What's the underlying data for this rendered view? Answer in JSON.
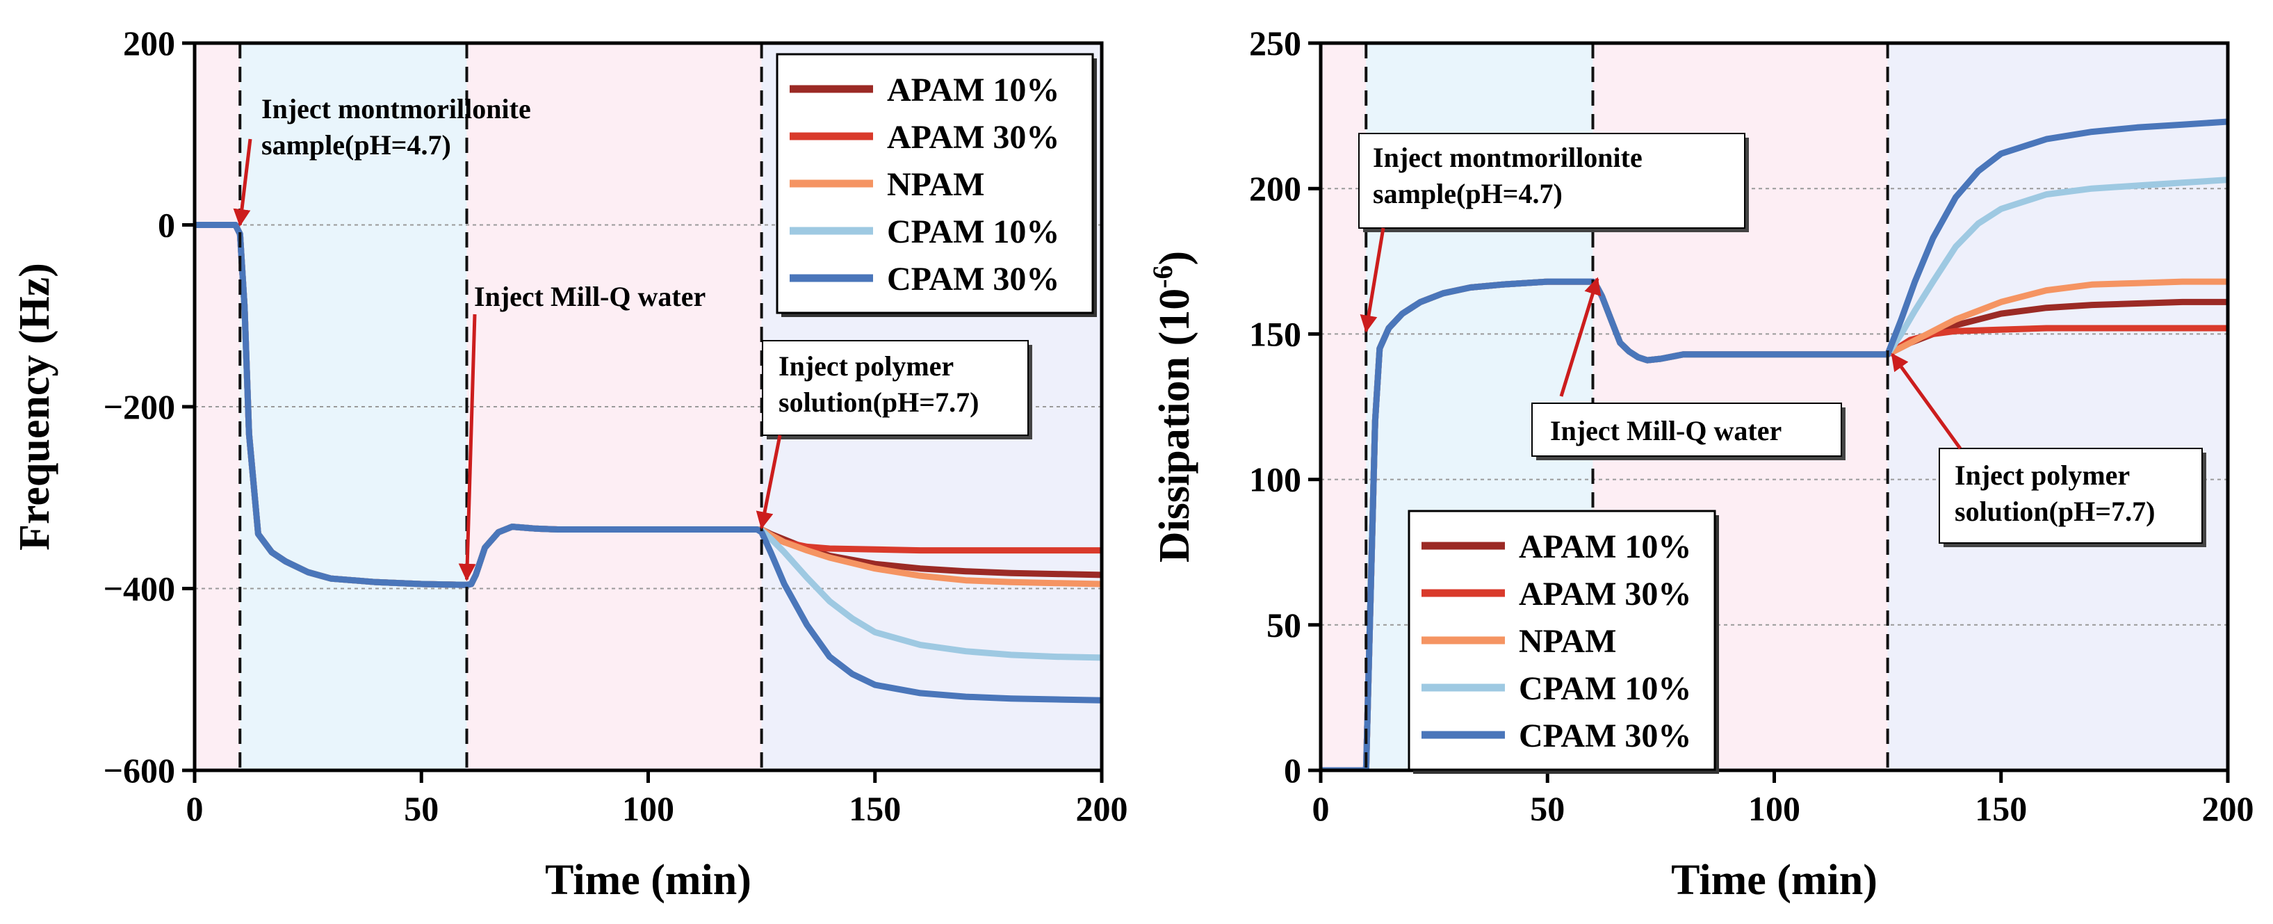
{
  "chart_data": [
    {
      "type": "line",
      "xlabel": "Time (min)",
      "ylabel": "Frequency (Hz)",
      "xlim": [
        0,
        200
      ],
      "ylim": [
        -600,
        200
      ],
      "xticks": [
        0,
        50,
        100,
        150,
        200
      ],
      "yticks": [
        -600,
        -400,
        -200,
        0,
        200
      ],
      "ytick_labels": [
        "−600",
        "−400",
        "−200",
        "0",
        "200"
      ],
      "grid_y": [
        -400,
        -200,
        0
      ],
      "phases": [
        {
          "from": 0,
          "to": 10,
          "color": "#fdeef4"
        },
        {
          "from": 10,
          "to": 60,
          "color": "#e9f5fc"
        },
        {
          "from": 60,
          "to": 125,
          "color": "#fdeef4"
        },
        {
          "from": 125,
          "to": 200,
          "color": "#eef0fb"
        }
      ],
      "events": [
        10,
        60,
        125
      ],
      "legend_position": "top-right",
      "series": [
        {
          "name": "APAM 10%",
          "color": "#9b2a25",
          "x": [
            0,
            9,
            10,
            11,
            12,
            14,
            17,
            20,
            25,
            30,
            40,
            50,
            60,
            61,
            62,
            64,
            67,
            70,
            75,
            80,
            90,
            100,
            110,
            124,
            125,
            127,
            130,
            135,
            140,
            150,
            160,
            170,
            180,
            190,
            200
          ],
          "y": [
            0,
            0,
            -10,
            -90,
            -230,
            -340,
            -360,
            -370,
            -382,
            -389,
            -393,
            -395,
            -396,
            -395,
            -385,
            -355,
            -338,
            -332,
            -334,
            -335,
            -335,
            -335,
            -335,
            -335,
            -335,
            -340,
            -346,
            -356,
            -364,
            -373,
            -378,
            -381,
            -383,
            -384,
            -385
          ]
        },
        {
          "name": "APAM 30%",
          "color": "#d93a2b",
          "x": [
            0,
            9,
            10,
            11,
            12,
            14,
            17,
            20,
            25,
            30,
            40,
            50,
            60,
            61,
            62,
            64,
            67,
            70,
            75,
            80,
            90,
            100,
            110,
            124,
            125,
            127,
            130,
            135,
            140,
            150,
            160,
            170,
            180,
            190,
            200
          ],
          "y": [
            0,
            0,
            -10,
            -90,
            -230,
            -340,
            -360,
            -370,
            -382,
            -389,
            -393,
            -395,
            -396,
            -395,
            -385,
            -355,
            -338,
            -332,
            -334,
            -335,
            -335,
            -335,
            -335,
            -335,
            -335,
            -342,
            -349,
            -354,
            -356,
            -357,
            -358,
            -358,
            -358,
            -358,
            -358
          ]
        },
        {
          "name": "NPAM",
          "color": "#f59462",
          "x": [
            0,
            9,
            10,
            11,
            12,
            14,
            17,
            20,
            25,
            30,
            40,
            50,
            60,
            61,
            62,
            64,
            67,
            70,
            75,
            80,
            90,
            100,
            110,
            124,
            125,
            127,
            130,
            135,
            140,
            150,
            160,
            170,
            180,
            190,
            200
          ],
          "y": [
            0,
            0,
            -10,
            -90,
            -230,
            -340,
            -360,
            -370,
            -382,
            -389,
            -393,
            -395,
            -396,
            -395,
            -385,
            -355,
            -338,
            -332,
            -334,
            -335,
            -335,
            -335,
            -335,
            -335,
            -335,
            -341,
            -349,
            -358,
            -366,
            -378,
            -386,
            -391,
            -393,
            -394,
            -395
          ]
        },
        {
          "name": "CPAM 10%",
          "color": "#9ec9e2",
          "x": [
            0,
            9,
            10,
            11,
            12,
            14,
            17,
            20,
            25,
            30,
            40,
            50,
            60,
            61,
            62,
            64,
            67,
            70,
            75,
            80,
            90,
            100,
            110,
            124,
            125,
            127,
            130,
            135,
            140,
            145,
            150,
            160,
            170,
            180,
            190,
            200
          ],
          "y": [
            0,
            0,
            -10,
            -90,
            -230,
            -340,
            -360,
            -370,
            -382,
            -389,
            -393,
            -395,
            -396,
            -395,
            -385,
            -355,
            -338,
            -332,
            -334,
            -335,
            -335,
            -335,
            -335,
            -335,
            -336,
            -345,
            -360,
            -388,
            -414,
            -433,
            -448,
            -462,
            -469,
            -473,
            -475,
            -476
          ]
        },
        {
          "name": "CPAM 30%",
          "color": "#4a76ba",
          "x": [
            0,
            9,
            10,
            11,
            12,
            14,
            17,
            20,
            25,
            30,
            40,
            50,
            60,
            61,
            62,
            64,
            67,
            70,
            75,
            80,
            90,
            100,
            110,
            124,
            125,
            127,
            130,
            135,
            140,
            145,
            150,
            160,
            170,
            180,
            190,
            200
          ],
          "y": [
            0,
            0,
            -10,
            -90,
            -230,
            -340,
            -360,
            -370,
            -382,
            -389,
            -393,
            -395,
            -396,
            -395,
            -385,
            -355,
            -338,
            -332,
            -334,
            -335,
            -335,
            -335,
            -335,
            -335,
            -338,
            -360,
            -395,
            -440,
            -475,
            -494,
            -506,
            -515,
            -519,
            -521,
            -522,
            -523
          ]
        }
      ],
      "annotations": [
        {
          "lines": [
            "Inject montmorillonite",
            " sample(pH=4.7)"
          ],
          "target": [
            10,
            0
          ],
          "box": "none"
        },
        {
          "lines": [
            "Inject Mill-Q water"
          ],
          "target": [
            60,
            -390
          ],
          "box": "none"
        },
        {
          "lines": [
            "Inject polymer",
            "solution(pH=7.7)"
          ],
          "target": [
            125,
            -333
          ],
          "box": "framed"
        }
      ]
    },
    {
      "type": "line",
      "xlabel": "Time (min)",
      "ylabel": "Dissipation (10",
      "ylabel_superscript": "-6",
      "ylabel_suffix": ")",
      "xlim": [
        0,
        200
      ],
      "ylim": [
        0,
        250
      ],
      "xticks": [
        0,
        50,
        100,
        150,
        200
      ],
      "yticks": [
        0,
        50,
        100,
        150,
        200,
        250
      ],
      "ytick_labels": [
        "0",
        "50",
        "100",
        "150",
        "200",
        "250"
      ],
      "grid_y": [
        50,
        100,
        150,
        200
      ],
      "phases": [
        {
          "from": 0,
          "to": 10,
          "color": "#fdeef4"
        },
        {
          "from": 10,
          "to": 60,
          "color": "#e9f5fc"
        },
        {
          "from": 60,
          "to": 125,
          "color": "#fdeef4"
        },
        {
          "from": 125,
          "to": 200,
          "color": "#eef0fb"
        }
      ],
      "events": [
        10,
        60,
        125
      ],
      "legend_position": "bottom-left",
      "series": [
        {
          "name": "APAM 10%",
          "color": "#9b2a25",
          "x": [
            0,
            10,
            11,
            12,
            13,
            15,
            18,
            22,
            27,
            33,
            40,
            50,
            58,
            60,
            61,
            62,
            64,
            66,
            68,
            70,
            72,
            75,
            80,
            90,
            100,
            110,
            125,
            130,
            135,
            140,
            150,
            160,
            170,
            180,
            190,
            200
          ],
          "y": [
            0,
            0,
            60,
            120,
            145,
            152,
            157,
            161,
            164,
            166,
            167,
            168,
            168,
            168,
            166,
            163,
            155,
            147,
            144,
            142,
            141,
            141.5,
            143,
            143,
            143,
            143,
            143,
            147,
            150,
            153,
            157,
            159,
            160,
            160.5,
            161,
            161
          ]
        },
        {
          "name": "APAM 30%",
          "color": "#d93a2b",
          "x": [
            0,
            10,
            11,
            12,
            13,
            15,
            18,
            22,
            27,
            33,
            40,
            50,
            58,
            60,
            61,
            62,
            64,
            66,
            68,
            70,
            72,
            75,
            80,
            90,
            100,
            110,
            125,
            130,
            135,
            140,
            150,
            160,
            170,
            180,
            190,
            200
          ],
          "y": [
            0,
            0,
            60,
            120,
            145,
            152,
            157,
            161,
            164,
            166,
            167,
            168,
            168,
            168,
            166,
            163,
            155,
            147,
            144,
            142,
            141,
            141.5,
            143,
            143,
            143,
            143,
            143,
            148,
            150,
            151,
            151.5,
            152,
            152,
            152,
            152,
            152
          ]
        },
        {
          "name": "NPAM",
          "color": "#f59462",
          "x": [
            0,
            10,
            11,
            12,
            13,
            15,
            18,
            22,
            27,
            33,
            40,
            50,
            58,
            60,
            61,
            62,
            64,
            66,
            68,
            70,
            72,
            75,
            80,
            90,
            100,
            110,
            125,
            130,
            135,
            140,
            150,
            160,
            170,
            180,
            190,
            200
          ],
          "y": [
            0,
            0,
            60,
            120,
            145,
            152,
            157,
            161,
            164,
            166,
            167,
            168,
            168,
            168,
            166,
            163,
            155,
            147,
            144,
            142,
            141,
            141.5,
            143,
            143,
            143,
            143,
            143,
            147,
            151,
            155,
            161,
            165,
            167,
            167.5,
            168,
            168
          ]
        },
        {
          "name": "CPAM 10%",
          "color": "#9ec9e2",
          "x": [
            0,
            10,
            11,
            12,
            13,
            15,
            18,
            22,
            27,
            33,
            40,
            50,
            58,
            60,
            61,
            62,
            64,
            66,
            68,
            70,
            72,
            75,
            80,
            90,
            100,
            110,
            125,
            128,
            131,
            135,
            140,
            145,
            150,
            160,
            170,
            180,
            190,
            200
          ],
          "y": [
            0,
            0,
            60,
            120,
            145,
            152,
            157,
            161,
            164,
            166,
            167,
            168,
            168,
            168,
            166,
            163,
            155,
            147,
            144,
            142,
            141,
            141.5,
            143,
            143,
            143,
            143,
            143,
            150,
            158,
            168,
            180,
            188,
            193,
            198,
            200,
            201,
            202,
            203
          ]
        },
        {
          "name": "CPAM 30%",
          "color": "#4a76ba",
          "x": [
            0,
            10,
            11,
            12,
            13,
            15,
            18,
            22,
            27,
            33,
            40,
            50,
            58,
            60,
            61,
            62,
            64,
            66,
            68,
            70,
            72,
            75,
            80,
            90,
            100,
            110,
            125,
            128,
            131,
            135,
            140,
            145,
            150,
            160,
            170,
            180,
            190,
            200
          ],
          "y": [
            0,
            0,
            60,
            120,
            145,
            152,
            157,
            161,
            164,
            166,
            167,
            168,
            168,
            168,
            166,
            163,
            155,
            147,
            144,
            142,
            141,
            141.5,
            143,
            143,
            143,
            143,
            143,
            155,
            168,
            183,
            197,
            206,
            212,
            217,
            219.5,
            221,
            222,
            223
          ]
        }
      ],
      "annotations": [
        {
          "lines": [
            "Inject montmorillonite",
            " sample(pH=4.7)"
          ],
          "target": [
            10,
            151
          ],
          "box": "framed"
        },
        {
          "lines": [
            "Inject Mill-Q water"
          ],
          "target": [
            61,
            169
          ],
          "box": "framed"
        },
        {
          "lines": [
            "Inject polymer",
            "solution(pH=7.7)"
          ],
          "target": [
            126,
            143
          ],
          "box": "framed"
        }
      ]
    }
  ]
}
